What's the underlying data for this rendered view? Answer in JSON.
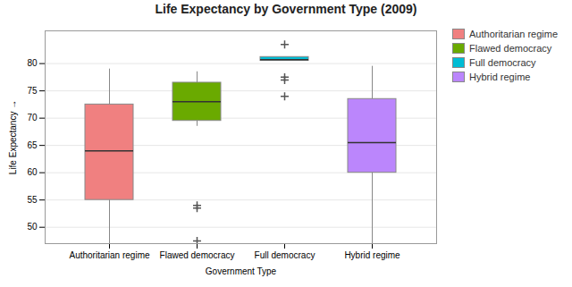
{
  "chart_data": {
    "type": "box",
    "title": "Life Expectancy by Government Type (2009)",
    "xlabel": "Government Type",
    "ylabel": "Life Expectancy",
    "categories": [
      "Authoritarian regime",
      "Flawed democracy",
      "Full democracy",
      "Hybrid regime"
    ],
    "colors": [
      "#f08080",
      "#6aaa00",
      "#00bcd4",
      "#bb86fc"
    ],
    "boxes": [
      {
        "whisker_low": 47.0,
        "q1": 55.0,
        "median": 64.0,
        "q3": 72.5,
        "whisker_high": 79.0,
        "outliers": []
      },
      {
        "whisker_low": 68.5,
        "q1": 69.5,
        "median": 73.0,
        "q3": 76.5,
        "whisker_high": 78.5,
        "outliers": [
          47.5,
          53.5,
          54.0
        ]
      },
      {
        "whisker_low": 80.5,
        "q1": 80.5,
        "median": 80.7,
        "q3": 81.2,
        "whisker_high": 81.2,
        "outliers": [
          74.0,
          77.0,
          77.5,
          83.5
        ]
      },
      {
        "whisker_low": 47.0,
        "q1": 60.0,
        "median": 65.5,
        "q3": 73.5,
        "whisker_high": 79.5,
        "outliers": []
      }
    ],
    "ylim": [
      47,
      86
    ],
    "yticks": [
      50,
      55,
      60,
      65,
      70,
      75,
      80
    ],
    "grid": true,
    "legend": "upper right"
  }
}
